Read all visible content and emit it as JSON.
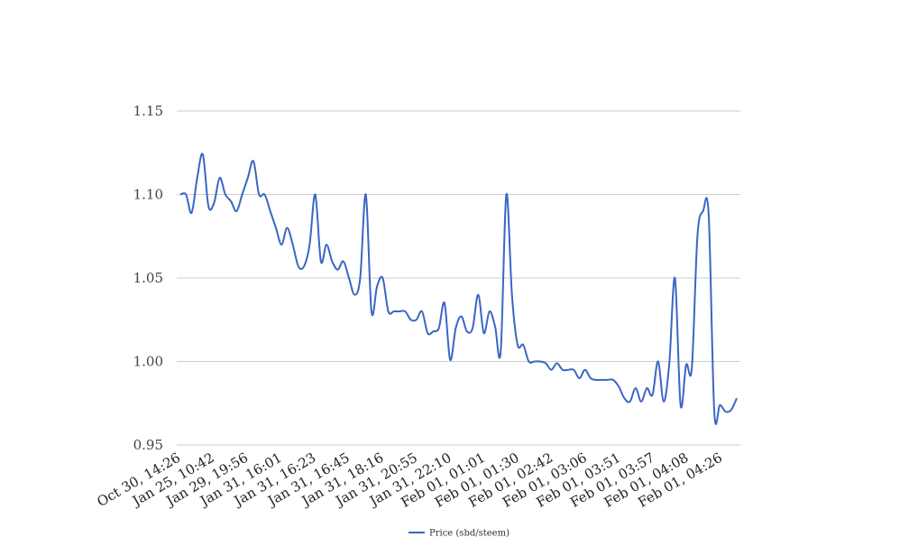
{
  "chart_data": {
    "type": "line",
    "title": "",
    "xlabel": "",
    "ylabel": "",
    "ylim": [
      0.95,
      1.15
    ],
    "yticks": [
      "0.95",
      "1.00",
      "1.05",
      "1.10",
      "1.15"
    ],
    "xticks": [
      "Oct 30, 14:26",
      "Jan 25, 10:42",
      "Jan 29, 19:56",
      "Jan 31, 16:01",
      "Jan 31, 16:23",
      "Jan 31, 16:45",
      "Jan 31, 18:16",
      "Jan 31, 20:55",
      "Jan 31, 22:10",
      "Feb 01, 01:01",
      "Feb 01, 01:30",
      "Feb 01, 02:42",
      "Feb 01, 03:06",
      "Feb 01, 03:51",
      "Feb 01, 03:57",
      "Feb 01, 04:08",
      "Feb 01, 04:26"
    ],
    "grid": true,
    "legend_position": "bottom",
    "color": "#3a66c4",
    "series": [
      {
        "name": "Price (sbd/steem)",
        "values": [
          1.1,
          1.1,
          1.089,
          1.11,
          1.124,
          1.093,
          1.095,
          1.11,
          1.1,
          1.096,
          1.09,
          1.1,
          1.11,
          1.12,
          1.1,
          1.1,
          1.09,
          1.08,
          1.07,
          1.08,
          1.07,
          1.057,
          1.057,
          1.07,
          1.1,
          1.06,
          1.07,
          1.06,
          1.055,
          1.06,
          1.05,
          1.04,
          1.05,
          1.1,
          1.03,
          1.045,
          1.05,
          1.03,
          1.03,
          1.03,
          1.03,
          1.025,
          1.025,
          1.03,
          1.017,
          1.018,
          1.02,
          1.035,
          1.001,
          1.02,
          1.027,
          1.018,
          1.02,
          1.04,
          1.017,
          1.03,
          1.021,
          1.006,
          1.1,
          1.04,
          1.01,
          1.01,
          1.0,
          1.0,
          1.0,
          0.999,
          0.995,
          0.999,
          0.995,
          0.995,
          0.995,
          0.99,
          0.995,
          0.99,
          0.989,
          0.989,
          0.989,
          0.989,
          0.985,
          0.978,
          0.976,
          0.984,
          0.976,
          0.984,
          0.98,
          1.0,
          0.976,
          0.999,
          1.05,
          0.974,
          0.998,
          0.996,
          1.075,
          1.09,
          1.088,
          0.97,
          0.974,
          0.97,
          0.971,
          0.978
        ]
      }
    ]
  }
}
